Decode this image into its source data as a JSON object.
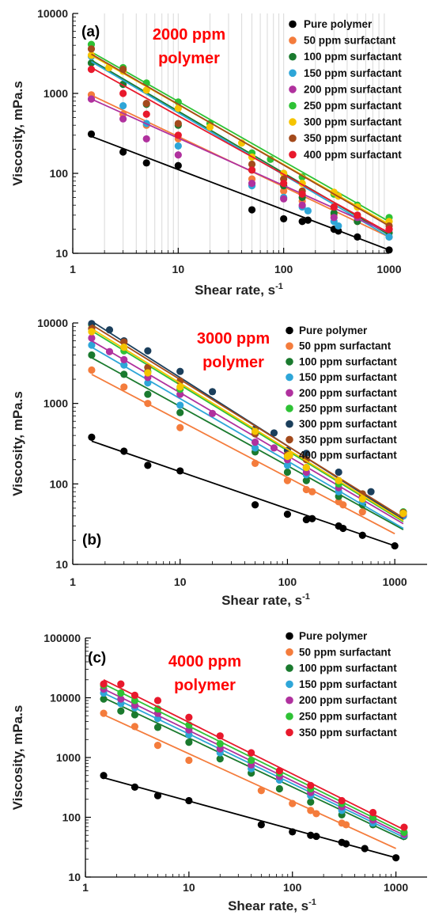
{
  "colors": {
    "Pure polymer": "#000000",
    "50 ppm surfactant": "#f47c3c",
    "100 ppm surfactant": "#1a7a2e",
    "150 ppm surfactant": "#2ea6d8",
    "200 ppm surfactant": "#b0319e",
    "250 ppm surfactant": "#2ec235",
    "300 ppm surfactant": "#f5c400",
    "350 ppm surfactant": "#a34a1c",
    "400 ppm surfactant": "#e8192c",
    "300 ppm surfactant (b)": "#1b3f5c",
    "350 ppm surfactant (c)": "#e8192c"
  },
  "chart_data": [
    {
      "type": "scatter",
      "panel_label": "(a)",
      "annotation": [
        "2000 ppm",
        "polymer"
      ],
      "xlabel": "Shear rate, s",
      "xlabel_sup": "-1",
      "ylabel": "Viscosity, mPa.s",
      "x_scale": "log",
      "y_scale": "log",
      "xlim": [
        1,
        1000
      ],
      "ylim": [
        10,
        10000
      ],
      "x_ticks": [
        "1",
        "10",
        "100",
        "1000"
      ],
      "y_ticks": [
        "10",
        "100",
        "1000",
        "10000"
      ],
      "grid": "vertical",
      "legend_position": "top-right",
      "series": [
        {
          "name": "Pure polymer",
          "color": "#000000",
          "fit": [
            [
              1.5,
              290
            ],
            [
              1000,
              11
            ]
          ],
          "x": [
            1.5,
            3,
            5,
            10,
            50,
            100,
            150,
            170,
            300,
            330,
            500,
            1000
          ],
          "y": [
            310,
            185,
            135,
            125,
            35,
            27,
            25,
            26,
            20,
            19,
            16,
            11
          ]
        },
        {
          "name": "50 ppm surfactant",
          "color": "#f47c3c",
          "fit": [
            [
              1.5,
              950
            ],
            [
              1000,
              16
            ]
          ],
          "x": [
            1.5,
            3,
            5,
            10,
            50,
            100,
            150,
            300,
            500,
            1000
          ],
          "y": [
            960,
            550,
            400,
            270,
            85,
            60,
            45,
            30,
            25,
            16
          ]
        },
        {
          "name": "100 ppm surfactant",
          "color": "#1a7a2e",
          "fit": [
            [
              1.5,
              2600
            ],
            [
              1000,
              17
            ]
          ],
          "x": [
            1.5,
            3,
            5,
            10,
            50,
            100,
            150,
            300,
            500,
            1000
          ],
          "y": [
            2400,
            1300,
            730,
            400,
            110,
            70,
            50,
            32,
            25,
            18
          ]
        },
        {
          "name": "150 ppm surfactant",
          "color": "#2ea6d8",
          "fit": [
            [
              1.5,
              2500
            ],
            [
              1000,
              16
            ]
          ],
          "x": [
            1.5,
            3,
            5,
            10,
            50,
            100,
            150,
            170,
            300,
            330,
            1000
          ],
          "y": [
            2900,
            700,
            420,
            220,
            70,
            50,
            38,
            34,
            25,
            22,
            16
          ]
        },
        {
          "name": "200 ppm surfactant",
          "color": "#b0319e",
          "fit": [
            [
              1.5,
              850
            ],
            [
              1000,
              18
            ]
          ],
          "x": [
            1.5,
            3,
            5,
            10,
            50,
            100,
            150,
            300,
            500,
            1000
          ],
          "y": [
            850,
            480,
            270,
            170,
            75,
            48,
            40,
            28,
            28,
            20
          ]
        },
        {
          "name": "250 ppm surfactant",
          "color": "#2ec235",
          "fit": [
            [
              1.5,
              3300
            ],
            [
              1000,
              25
            ]
          ],
          "x": [
            1.5,
            2.2,
            3,
            5,
            10,
            20,
            50,
            75,
            100,
            150,
            300,
            330,
            500,
            1000
          ],
          "y": [
            4100,
            2100,
            2100,
            1350,
            780,
            420,
            180,
            150,
            100,
            90,
            55,
            52,
            40,
            28
          ]
        },
        {
          "name": "300 ppm surfactant",
          "color": "#f5c400",
          "fit": [
            [
              1.5,
              3000
            ],
            [
              1000,
              23
            ]
          ],
          "x": [
            1.5,
            2.2,
            3,
            5,
            10,
            20,
            40,
            50,
            100,
            150,
            300,
            330,
            500,
            1000
          ],
          "y": [
            3000,
            2100,
            1900,
            1100,
            650,
            380,
            240,
            160,
            100,
            75,
            58,
            52,
            38,
            25
          ]
        },
        {
          "name": "350 ppm surfactant",
          "color": "#a34a1c",
          "fit": [
            [
              1.5,
              3100
            ],
            [
              1000,
              22
            ]
          ],
          "x": [
            1.5,
            3,
            5,
            10,
            50,
            100,
            150,
            300,
            500,
            1000
          ],
          "y": [
            3600,
            2000,
            750,
            420,
            130,
            85,
            60,
            38,
            30,
            22
          ]
        },
        {
          "name": "400 ppm surfactant",
          "color": "#e8192c",
          "fit": [
            [
              1.5,
              2100
            ],
            [
              1000,
              18
            ]
          ],
          "x": [
            1.5,
            3,
            5,
            10,
            50,
            100,
            150,
            300,
            500,
            1000
          ],
          "y": [
            2000,
            1000,
            550,
            300,
            110,
            75,
            55,
            38,
            30,
            20
          ]
        }
      ]
    },
    {
      "type": "scatter",
      "panel_label": "(b)",
      "annotation": [
        "3000 ppm",
        "polymer"
      ],
      "xlabel": "Shear rate, s",
      "xlabel_sup": "-1",
      "ylabel": "Viscosity, mPa.s",
      "x_scale": "log",
      "y_scale": "log",
      "xlim": [
        1,
        2000
      ],
      "ylim": [
        10,
        10000
      ],
      "x_ticks": [
        "1",
        "10",
        "100",
        "1000"
      ],
      "y_ticks": [
        "10",
        "100",
        "1000",
        "10000"
      ],
      "grid": "none",
      "legend_position": "top-right",
      "series": [
        {
          "name": "Pure polymer",
          "color": "#000000",
          "fit": [
            [
              1.5,
              340
            ],
            [
              1000,
              17
            ]
          ],
          "x": [
            1.5,
            3,
            5,
            10,
            50,
            100,
            150,
            170,
            300,
            330,
            500,
            1000
          ],
          "y": [
            380,
            255,
            170,
            145,
            55,
            42,
            36,
            37,
            30,
            28,
            23,
            17
          ]
        },
        {
          "name": "50 ppm surfactant",
          "color": "#f47c3c",
          "fit": [
            [
              1.5,
              2300
            ],
            [
              1000,
              24
            ]
          ],
          "x": [
            1.5,
            3,
            5,
            10,
            50,
            100,
            150,
            170,
            300,
            330,
            500,
            1200
          ],
          "y": [
            2600,
            1600,
            1000,
            500,
            180,
            110,
            85,
            80,
            60,
            55,
            45,
            40
          ]
        },
        {
          "name": "100 ppm surfactant",
          "color": "#1a7a2e",
          "fit": [
            [
              1.5,
              3700
            ],
            [
              1200,
              27
            ]
          ],
          "x": [
            1.5,
            3,
            5,
            10,
            50,
            100,
            150,
            300,
            500,
            1200
          ],
          "y": [
            4000,
            2300,
            1300,
            770,
            250,
            140,
            110,
            70,
            55,
            40
          ]
        },
        {
          "name": "150 ppm surfactant",
          "color": "#2ea6d8",
          "fit": [
            [
              1.5,
              5000
            ],
            [
              1200,
              28
            ]
          ],
          "x": [
            1.5,
            3,
            5,
            10,
            50,
            100,
            150,
            300,
            500,
            1200
          ],
          "y": [
            5300,
            3000,
            1800,
            950,
            280,
            170,
            130,
            80,
            60,
            40
          ]
        },
        {
          "name": "200 ppm surfactant",
          "color": "#b0319e",
          "fit": [
            [
              1.5,
              6000
            ],
            [
              1200,
              32
            ]
          ],
          "x": [
            1.5,
            2.2,
            3,
            5,
            10,
            20,
            50,
            75,
            100,
            150,
            300,
            500,
            1200
          ],
          "y": [
            6500,
            4400,
            3500,
            2100,
            1300,
            750,
            330,
            280,
            200,
            140,
            90,
            70,
            42
          ]
        },
        {
          "name": "250 ppm surfactant",
          "color": "#2ec235",
          "fit": [
            [
              1.5,
              8000
            ],
            [
              1200,
              34
            ]
          ],
          "x": [
            1.5,
            3,
            5,
            10,
            50,
            100,
            150,
            300,
            500,
            1200
          ],
          "y": [
            9500,
            4500,
            2500,
            1500,
            420,
            220,
            160,
            100,
            75,
            45
          ]
        },
        {
          "name": "300 ppm surfactant",
          "color": "#1b3f5c",
          "fit": [
            [
              1.5,
              10500
            ],
            [
              1200,
              36
            ]
          ],
          "x": [
            1.5,
            2.2,
            3,
            5,
            10,
            20,
            50,
            75,
            100,
            150,
            300,
            600,
            1200
          ],
          "y": [
            9800,
            8200,
            6000,
            4500,
            2500,
            1400,
            480,
            430,
            260,
            240,
            140,
            80,
            43
          ]
        },
        {
          "name": "350 ppm surfactant",
          "color": "#a34a1c",
          "fit": [
            [
              1.5,
              9500
            ],
            [
              1200,
              38
            ]
          ],
          "x": [
            1.5,
            3,
            5,
            10,
            50,
            100,
            150,
            300,
            500,
            1200
          ],
          "y": [
            8500,
            5800,
            2800,
            1900,
            420,
            230,
            200,
            110,
            75,
            44
          ]
        },
        {
          "name": "400 ppm surfactant",
          "color": "#f5c400",
          "fit": [
            [
              1.5,
              8500
            ],
            [
              1200,
              35
            ]
          ],
          "x": [
            1.5,
            3,
            5,
            10,
            50,
            100,
            150,
            300,
            500,
            1200
          ],
          "y": [
            7800,
            5000,
            2400,
            1600,
            450,
            220,
            160,
            110,
            65,
            43
          ]
        }
      ]
    },
    {
      "type": "scatter",
      "panel_label": "(c)",
      "annotation": [
        "4000 ppm",
        "polymer"
      ],
      "xlabel": "Shear rate, s",
      "xlabel_sup": "-1",
      "ylabel": "Viscosity, mPa.s",
      "x_scale": "log",
      "y_scale": "log",
      "xlim": [
        1,
        2000
      ],
      "ylim": [
        10,
        100000
      ],
      "x_ticks": [
        "1",
        "10",
        "100",
        "1000"
      ],
      "y_ticks": [
        "10",
        "100",
        "1000",
        "10000",
        "100000"
      ],
      "grid": "none",
      "legend_position": "top-right",
      "series": [
        {
          "name": "Pure polymer",
          "color": "#000000",
          "fit": [
            [
              1.5,
              460
            ],
            [
              1000,
              21
            ]
          ],
          "x": [
            1.5,
            3,
            5,
            10,
            50,
            100,
            150,
            170,
            300,
            330,
            500,
            1000
          ],
          "y": [
            500,
            320,
            230,
            190,
            75,
            57,
            50,
            48,
            38,
            36,
            30,
            21
          ]
        },
        {
          "name": "50 ppm surfactant",
          "color": "#f47c3c",
          "fit": [
            [
              1.5,
              5200
            ],
            [
              1000,
              30
            ]
          ],
          "x": [
            1.5,
            3,
            5,
            10,
            50,
            100,
            150,
            170,
            300,
            330
          ],
          "y": [
            5500,
            3300,
            1600,
            900,
            280,
            170,
            130,
            115,
            80,
            75
          ]
        },
        {
          "name": "100 ppm surfactant",
          "color": "#1a7a2e",
          "fit": [
            [
              1.5,
              10000
            ],
            [
              1200,
              42
            ]
          ],
          "x": [
            1.5,
            2.2,
            3,
            5,
            10,
            20,
            40,
            75,
            150,
            300,
            600,
            1200
          ],
          "y": [
            9500,
            6000,
            5200,
            3200,
            1800,
            950,
            550,
            300,
            180,
            110,
            75,
            48
          ]
        },
        {
          "name": "150 ppm surfactant",
          "color": "#2ea6d8",
          "fit": [
            [
              1.5,
              12000
            ],
            [
              1200,
              46
            ]
          ],
          "x": [
            1.5,
            2.2,
            3,
            5,
            10,
            20,
            40,
            75,
            150,
            300,
            600,
            1200
          ],
          "y": [
            12000,
            8000,
            6800,
            4500,
            2400,
            1200,
            650,
            420,
            230,
            130,
            80,
            50
          ]
        },
        {
          "name": "200 ppm surfactant",
          "color": "#b0319e",
          "fit": [
            [
              1.5,
              14000
            ],
            [
              1200,
              50
            ]
          ],
          "x": [
            1.5,
            2.2,
            3,
            5,
            10,
            20,
            40,
            75,
            150,
            300,
            600,
            1200
          ],
          "y": [
            14000,
            9500,
            7500,
            5500,
            2900,
            1400,
            750,
            480,
            260,
            150,
            90,
            52
          ]
        },
        {
          "name": "250 ppm surfactant",
          "color": "#2ec235",
          "fit": [
            [
              1.5,
              17000
            ],
            [
              1200,
              55
            ]
          ],
          "x": [
            1.5,
            2.2,
            3,
            5,
            10,
            20,
            40,
            75,
            150,
            300,
            600,
            1200
          ],
          "y": [
            16000,
            12000,
            9000,
            6500,
            3500,
            1700,
            900,
            550,
            300,
            170,
            100,
            56
          ]
        },
        {
          "name": "350 ppm surfactant",
          "color": "#e8192c",
          "fit": [
            [
              1.5,
              20000
            ],
            [
              1200,
              62
            ]
          ],
          "x": [
            1.5,
            2.2,
            3,
            5,
            10,
            20,
            40,
            75,
            150,
            300,
            600,
            1200
          ],
          "y": [
            17000,
            17000,
            11000,
            9000,
            4700,
            2300,
            1200,
            600,
            340,
            190,
            120,
            68
          ]
        }
      ]
    }
  ]
}
